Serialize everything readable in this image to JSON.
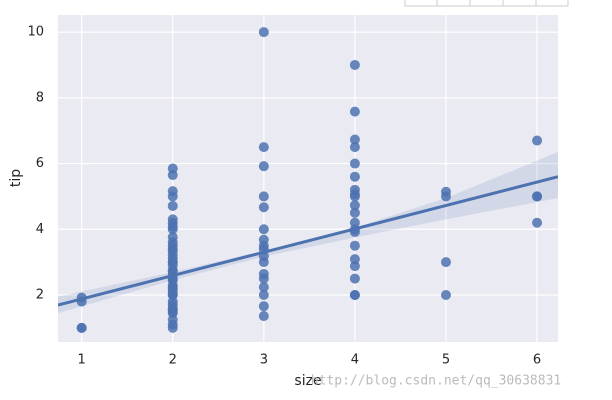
{
  "chart_data": {
    "type": "scatter",
    "xlabel": "size",
    "ylabel": "tip",
    "xlim": [
      0.74,
      6.23
    ],
    "ylim": [
      0.57,
      10.52
    ],
    "xticks": [
      1,
      2,
      3,
      4,
      5,
      6
    ],
    "yticks": [
      2,
      4,
      6,
      8,
      10
    ],
    "grid": true,
    "color": "#4c72b0",
    "x": [
      1,
      1,
      1,
      1,
      2,
      2,
      2,
      2,
      2,
      2,
      2,
      2,
      2,
      2,
      2,
      2,
      2,
      2,
      2,
      2,
      2,
      2,
      2,
      2,
      2,
      2,
      2,
      2,
      2,
      2,
      2,
      2,
      2,
      2,
      2,
      2,
      2,
      2,
      2,
      2,
      2,
      2,
      2,
      3,
      3,
      3,
      3,
      3,
      3,
      3,
      3,
      3,
      3,
      3,
      3,
      3,
      3,
      3,
      3,
      3,
      4,
      4,
      4,
      4,
      4,
      4,
      4,
      4,
      4,
      4,
      4,
      4,
      4,
      4,
      4,
      4,
      4,
      4,
      4,
      4,
      5,
      5,
      5,
      5,
      6,
      6,
      6,
      6
    ],
    "y": [
      1.0,
      1.92,
      1.8,
      1.0,
      1.0,
      1.1,
      1.25,
      1.45,
      1.5,
      1.56,
      1.6,
      1.71,
      1.8,
      2.0,
      2.01,
      2.09,
      2.18,
      2.23,
      2.3,
      2.45,
      2.5,
      2.6,
      2.72,
      2.75,
      2.9,
      3.0,
      3.02,
      3.12,
      3.23,
      3.35,
      3.4,
      3.5,
      3.6,
      3.76,
      4.0,
      4.08,
      4.19,
      4.3,
      4.71,
      5.0,
      5.16,
      5.65,
      5.85,
      1.36,
      1.66,
      2.0,
      2.24,
      2.5,
      2.64,
      3.0,
      3.18,
      3.39,
      3.5,
      3.68,
      4.0,
      4.67,
      5.0,
      5.92,
      6.5,
      10.0,
      2.0,
      2.0,
      2.5,
      2.88,
      3.09,
      3.5,
      3.92,
      4.0,
      4.2,
      4.5,
      4.73,
      5.0,
      5.07,
      5.2,
      5.6,
      6.0,
      6.5,
      6.73,
      7.58,
      9.0,
      2.0,
      3.0,
      5.0,
      5.14,
      4.2,
      5.0,
      5.0,
      6.7
    ],
    "fit": {
      "x": [
        0.74,
        6.23
      ],
      "y": [
        1.695,
        5.598
      ]
    },
    "band": {
      "x": [
        0.74,
        2,
        3,
        4,
        5,
        6.23
      ],
      "ci_lower": [
        1.45,
        2.45,
        3.17,
        3.75,
        4.3,
        4.95
      ],
      "ci_upper": [
        1.95,
        2.7,
        3.35,
        4.05,
        4.95,
        6.35
      ]
    },
    "watermark": "http://blog.csdn.net/qq_30638831"
  }
}
